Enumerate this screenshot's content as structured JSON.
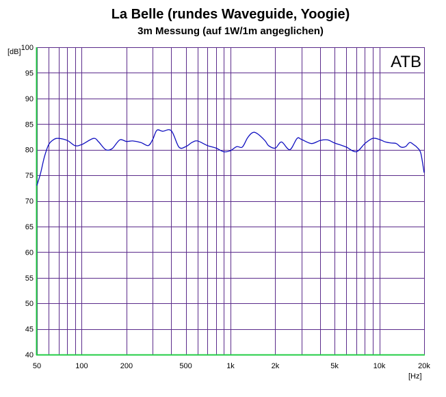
{
  "chart_data": {
    "type": "line",
    "title": "La Belle (rundes Waveguide, Yoogie)",
    "subtitle": "3m Messung (auf 1W/1m angeglichen)",
    "xlabel": "[Hz]",
    "ylabel": "[dB]",
    "badge": "ATB",
    "x_scale": "log",
    "xlim": [
      50,
      20000
    ],
    "ylim": [
      40,
      100
    ],
    "grid": true,
    "colors": {
      "curve": "#1010c0",
      "grid": "#5a2a8a",
      "axis": "#22cc44"
    },
    "x_ticks": [
      {
        "value": 50,
        "label": "50"
      },
      {
        "value": 100,
        "label": "100"
      },
      {
        "value": 200,
        "label": "200"
      },
      {
        "value": 500,
        "label": "500"
      },
      {
        "value": 1000,
        "label": "1k"
      },
      {
        "value": 2000,
        "label": "2k"
      },
      {
        "value": 5000,
        "label": "5k"
      },
      {
        "value": 10000,
        "label": "10k"
      },
      {
        "value": 20000,
        "label": "20k"
      }
    ],
    "y_ticks": [
      {
        "value": 100,
        "label": "100"
      },
      {
        "value": 95,
        "label": "95"
      },
      {
        "value": 90,
        "label": "90"
      },
      {
        "value": 85,
        "label": "85"
      },
      {
        "value": 80,
        "label": "80"
      },
      {
        "value": 75,
        "label": "75"
      },
      {
        "value": 70,
        "label": "70"
      },
      {
        "value": 65,
        "label": "65"
      },
      {
        "value": 60,
        "label": "60"
      },
      {
        "value": 55,
        "label": "55"
      },
      {
        "value": 50,
        "label": "50"
      },
      {
        "value": 45,
        "label": "45"
      },
      {
        "value": 40,
        "label": "40"
      }
    ],
    "series": [
      {
        "x": [
          50,
          53,
          56,
          60,
          65,
          70,
          80,
          90,
          100,
          120,
          130,
          145,
          160,
          180,
          200,
          220,
          250,
          280,
          300,
          320,
          350,
          400,
          450,
          500,
          550,
          600,
          700,
          800,
          900,
          1000,
          1100,
          1200,
          1300,
          1400,
          1500,
          1700,
          1800,
          2000,
          2200,
          2500,
          2800,
          3000,
          3500,
          4000,
          4500,
          5000,
          5500,
          6000,
          7000,
          8000,
          9000,
          10000,
          11000,
          12000,
          13000,
          14000,
          15000,
          16000,
          17000,
          18000,
          19000,
          20000
        ],
        "y": [
          73,
          75.5,
          78.5,
          81,
          82,
          82.2,
          81.8,
          80.8,
          81,
          82.2,
          81.5,
          80,
          80.2,
          81.9,
          81.6,
          81.7,
          81.4,
          80.8,
          82,
          83.8,
          83.6,
          83.7,
          80.5,
          80.6,
          81.4,
          81.7,
          80.8,
          80.3,
          79.6,
          79.8,
          80.6,
          80.5,
          82.3,
          83.3,
          83.2,
          81.8,
          80.8,
          80.3,
          81.5,
          80,
          82.2,
          82,
          81.2,
          81.8,
          81.9,
          81.3,
          80.9,
          80.5,
          79.6,
          81.2,
          82.2,
          82,
          81.5,
          81.3,
          81.2,
          80.5,
          80.6,
          81.4,
          81,
          80.4,
          79.3,
          75.5
        ]
      }
    ]
  }
}
